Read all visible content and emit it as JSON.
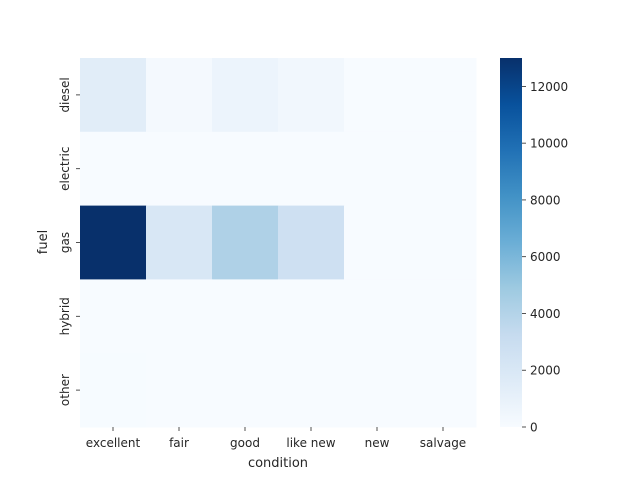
{
  "chart_data": {
    "type": "heatmap",
    "xlabel": "condition",
    "ylabel": "fuel",
    "x_categories": [
      "excellent",
      "fair",
      "good",
      "like new",
      "new",
      "salvage"
    ],
    "y_categories": [
      "diesel",
      "electric",
      "gas",
      "hybrid",
      "other"
    ],
    "values": [
      [
        1400,
        200,
        700,
        400,
        0,
        0
      ],
      [
        0,
        0,
        0,
        0,
        0,
        0
      ],
      [
        13000,
        2000,
        4200,
        2700,
        0,
        0
      ],
      [
        10,
        0,
        0,
        0,
        0,
        0
      ],
      [
        40,
        0,
        0,
        0,
        0,
        0
      ]
    ],
    "colorbar": {
      "min": 0,
      "max": 13000,
      "ticks": [
        0,
        2000,
        4000,
        6000,
        8000,
        10000,
        12000
      ],
      "colormap": "Blues"
    }
  }
}
